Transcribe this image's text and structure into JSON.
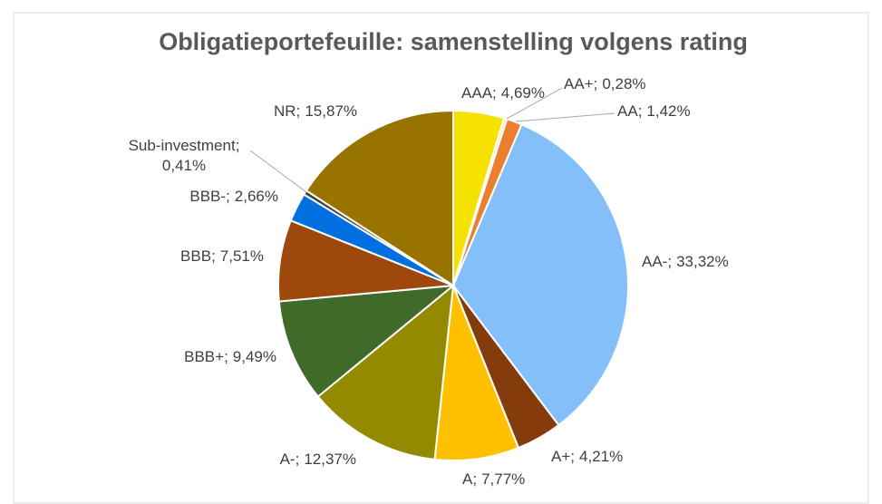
{
  "chart_data": {
    "type": "pie",
    "title": "Obligatieportefeuille: samenstelling volgens rating",
    "categories": [
      "AAA",
      "AA+",
      "AA",
      "AA-",
      "A+",
      "A",
      "A-",
      "BBB+",
      "BBB",
      "BBB-",
      "Sub-investment",
      "NR"
    ],
    "values": [
      4.69,
      0.28,
      1.42,
      33.32,
      4.21,
      7.77,
      12.37,
      9.49,
      7.51,
      2.66,
      0.41,
      15.87
    ],
    "value_labels": [
      "4,69%",
      "0,28%",
      "1,42%",
      "33,32%",
      "4,21%",
      "7,77%",
      "12,37%",
      "9,49%",
      "7,51%",
      "2,66%",
      "0,41%",
      "15,87%"
    ],
    "label_separator": ";",
    "colors": [
      "#f5e200",
      "#ffe9a8",
      "#ed7d31",
      "#85bff9",
      "#843c0c",
      "#ffc000",
      "#948a00",
      "#3f6a2a",
      "#9e480e",
      "#0070e0",
      "#404040",
      "#997300"
    ]
  }
}
